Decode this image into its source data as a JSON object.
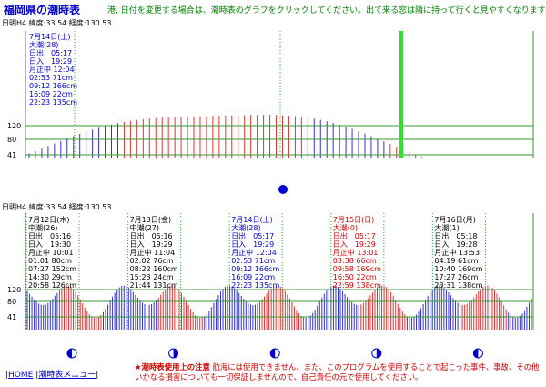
{
  "page": {
    "title": "福岡県の潮時表",
    "instruction": "港, 日付を変更する場合は、潮時表のグラフをクリックしてください。出て来る窓は隣に持って行くと見やすくなります",
    "footer": {
      "home": "HOME",
      "menu": "潮時表メニュー",
      "notice_title": "★潮時表使用上の注意",
      "notice_body": "航海には使用できません。また、このプログラムを使用することで起こった事件、事故、その他いかなる損害についても一切保証しませんので、自己責任の元で使用してください。"
    }
  },
  "top_chart": {
    "header": "日明H4 緯度:33.54 経度:130.53",
    "info": [
      "7月14日(土)",
      "大潮(28)",
      "日出　05:17",
      "日入　19:29",
      "月正中 12:04",
      "02:53 71cm",
      "09:12 166cm",
      "16:09 22cm",
      "22:23 135cm"
    ],
    "y_labels": [
      "120",
      "80",
      "41"
    ]
  },
  "bottom_chart": {
    "header": "日明H4 緯度:33.54 経度:130.53",
    "days": [
      {
        "color": "#000000",
        "lines": [
          "7月12日(木)",
          "中潮(26)",
          "日出　05:16",
          "日入　19:30",
          "月正中 10:01",
          "01:01 80cm",
          "07:27 152cm",
          "14:30 29cm",
          "20:58 126cm"
        ]
      },
      {
        "color": "#000000",
        "lines": [
          "7月13日(金)",
          "中潮(27)",
          "日出　05:16",
          "日入　19:29",
          "月正中 11:04",
          "02:02 76cm",
          "08:22 160cm",
          "15:23 24cm",
          "21:44 131cm"
        ]
      },
      {
        "color": "#0000cc",
        "lines": [
          "7月14日(土)",
          "大潮(28)",
          "日出　05:17",
          "日入　19:29",
          "月正中 12:04",
          "02:53 71cm",
          "09:12 166cm",
          "16:09 22cm",
          "22:23 135cm"
        ]
      },
      {
        "color": "#cc0000",
        "lines": [
          "7月15日(日)",
          "大潮(0)",
          "日出　05:17",
          "日入　19:29",
          "月正中 13:01",
          "03:38 66cm",
          "09:58 169cm",
          "16:50 22cm",
          "22:59 138cm"
        ]
      },
      {
        "color": "#000000",
        "lines": [
          "7月16日(月)",
          "大潮(1)",
          "日出　05:18",
          "日入　19:28",
          "月正中 13:53",
          "04:19 61cm",
          "10:40 169cm",
          "17:27 26cm",
          "23:31 138cm"
        ]
      }
    ],
    "y_labels": [
      "120",
      "80",
      "41"
    ]
  },
  "colors": {
    "blue_bar": "#3333cc",
    "red_bar": "#dd3333",
    "grid": "#339933",
    "now_marker": "#33dd33",
    "moon": "#0000cc"
  }
}
